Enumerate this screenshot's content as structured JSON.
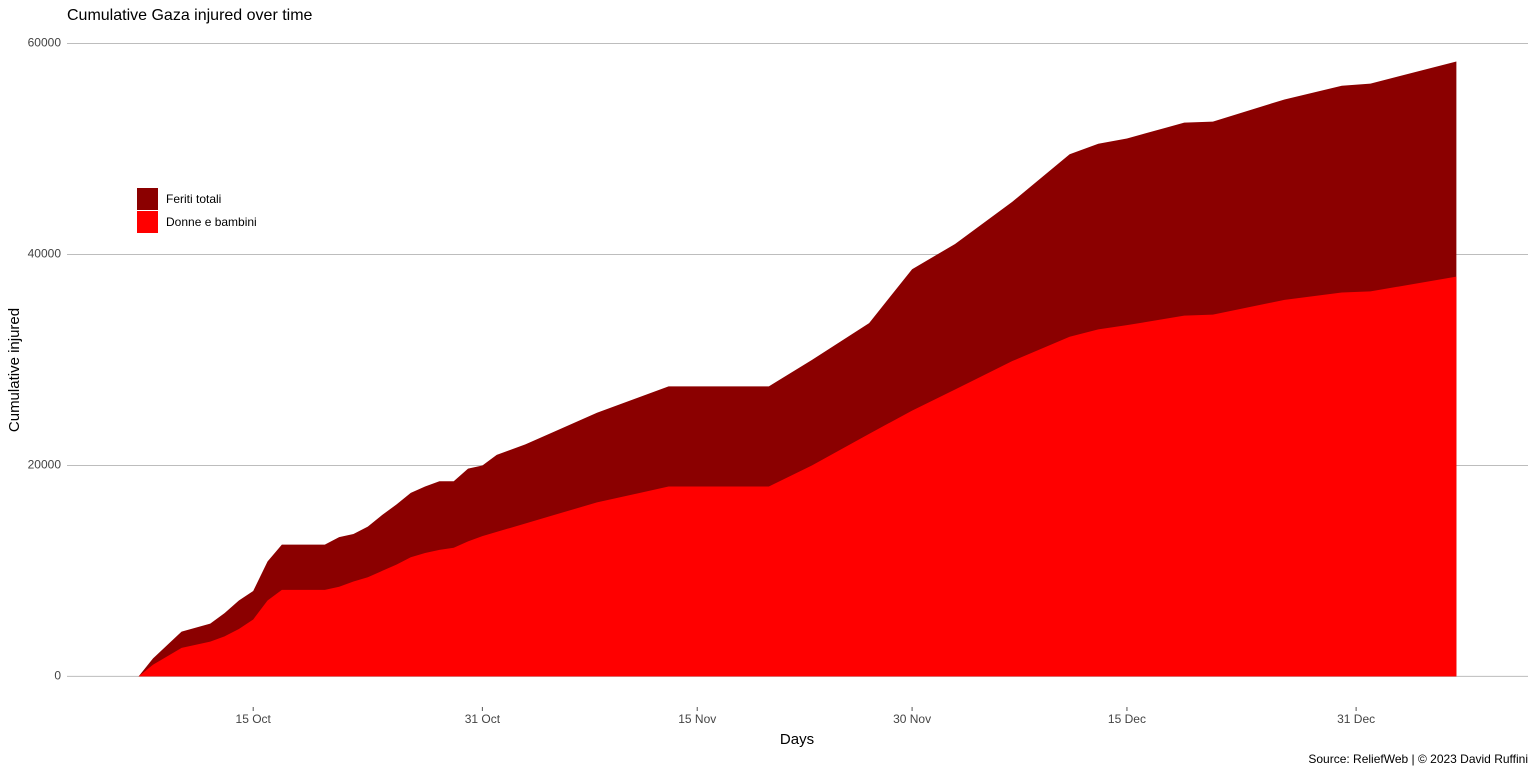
{
  "chart_data": {
    "type": "area",
    "title": "Cumulative Gaza injured over time",
    "x_label": "Days",
    "y_label": "Cumulative injured",
    "caption": "Source: ReliefWeb | © 2023 David Ruffini",
    "x": [
      "7 Oct",
      "8 Oct",
      "10 Oct",
      "12 Oct",
      "13 Oct",
      "14 Oct",
      "15 Oct",
      "16 Oct",
      "17 Oct",
      "20 Oct",
      "21 Oct",
      "22 Oct",
      "23 Oct",
      "24 Oct",
      "25 Oct",
      "26 Oct",
      "27 Oct",
      "28 Oct",
      "29 Oct",
      "30 Oct",
      "31 Oct",
      "1 Nov",
      "3 Nov",
      "5 Nov",
      "8 Nov",
      "13 Nov",
      "20 Nov",
      "23 Nov",
      "27 Nov",
      "30 Nov",
      "3 Dec",
      "7 Dec",
      "11 Dec",
      "13 Dec",
      "15 Dec",
      "19 Dec",
      "21 Dec",
      "26 Dec",
      "30 Dec",
      "1 Jan",
      "7 Jan"
    ],
    "series": [
      {
        "name": "Feriti totali",
        "color": "#8b0000",
        "values": [
          0,
          1700,
          4250,
          5000,
          6000,
          7200,
          8100,
          10900,
          12500,
          12500,
          13200,
          13500,
          14200,
          15300,
          16300,
          17400,
          18000,
          18500,
          18500,
          19700,
          20000,
          21000,
          22000,
          23200,
          25000,
          27500,
          27500,
          30000,
          33500,
          38600,
          41000,
          45000,
          49500,
          50500,
          51000,
          52500,
          52600,
          54700,
          56000,
          56200,
          58300
        ]
      },
      {
        "name": "Donne e bambini",
        "color": "#ff0000",
        "values": [
          0,
          1100,
          2700,
          3300,
          3800,
          4500,
          5400,
          7200,
          8200,
          8200,
          8500,
          9000,
          9400,
          10000,
          10600,
          11300,
          11700,
          12000,
          12200,
          12800,
          13300,
          13700,
          14500,
          15300,
          16500,
          18000,
          18000,
          20000,
          23000,
          25200,
          27200,
          29900,
          32200,
          32900,
          33300,
          34200,
          34300,
          35700,
          36400,
          36500,
          37900
        ]
      }
    ],
    "xlim": [
      "2 Oct",
      "12 Jan"
    ],
    "xticks": [
      "15 Oct",
      "31 Oct",
      "15 Nov",
      "30 Nov",
      "15 Dec",
      "31 Dec"
    ],
    "ylim": [
      -2900,
      61000
    ],
    "yticks": [
      0,
      20000,
      40000,
      60000
    ],
    "grid": true,
    "legend": "upper left"
  }
}
